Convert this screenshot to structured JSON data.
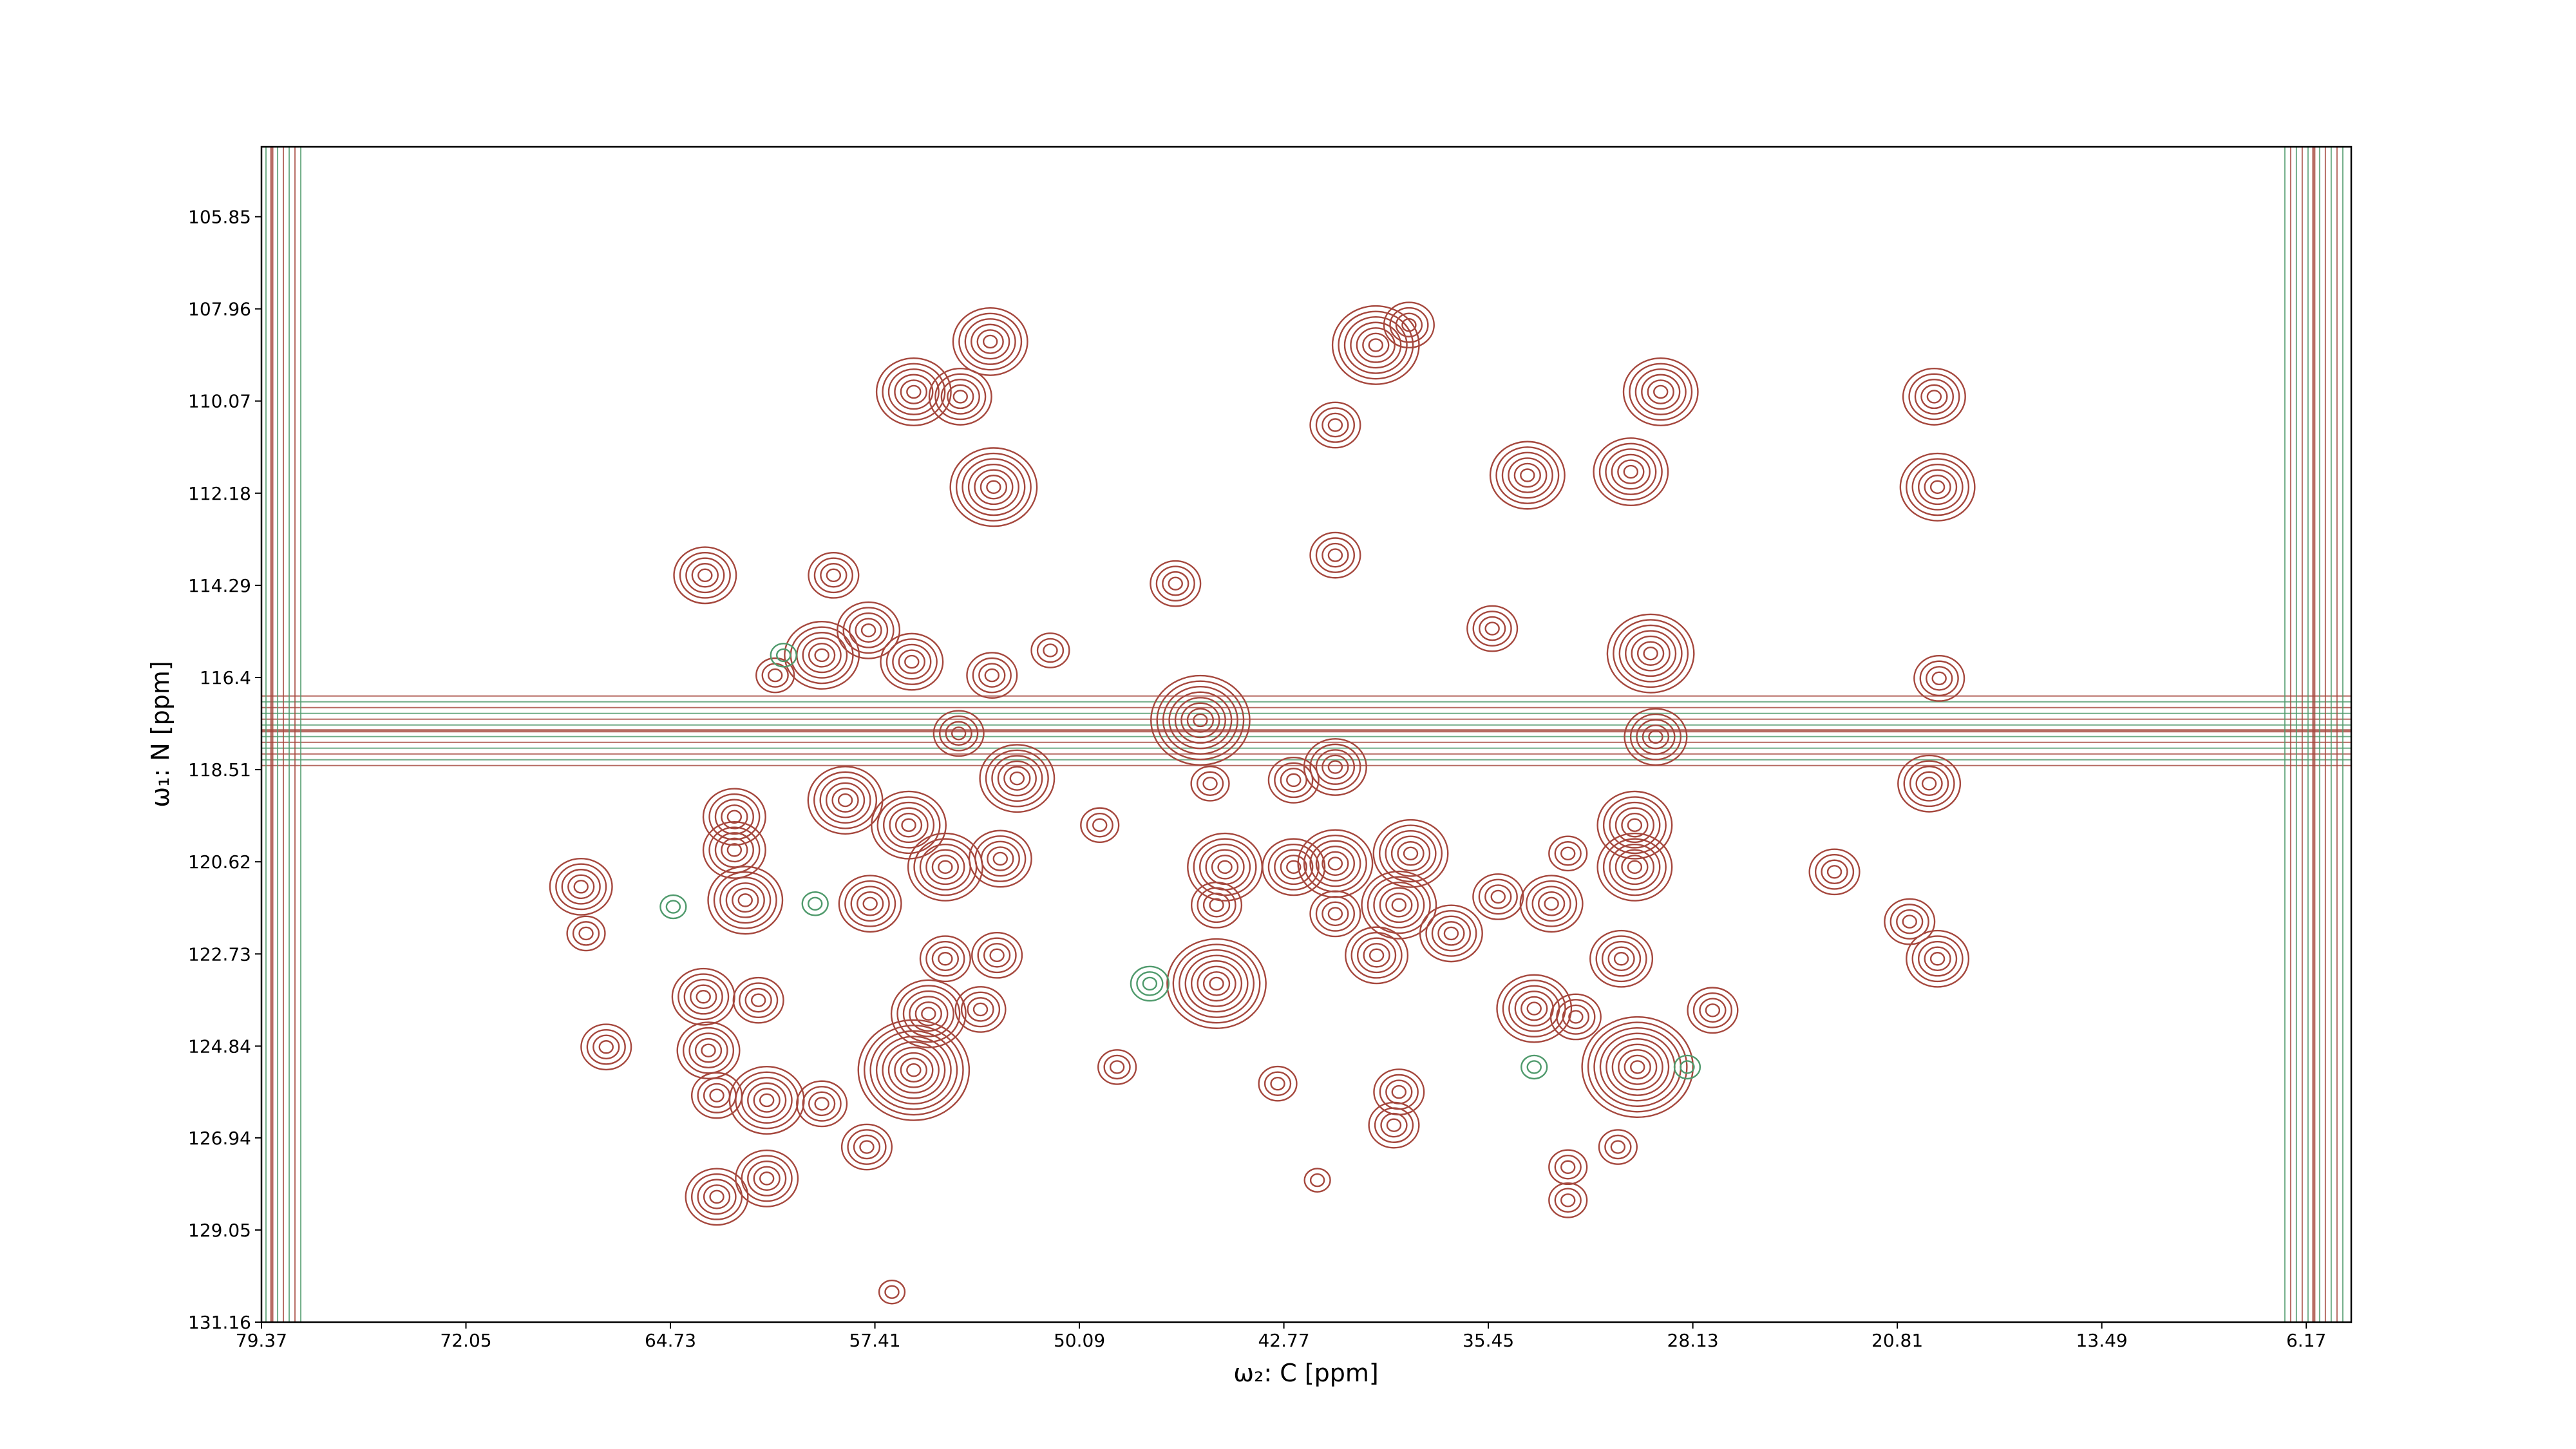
{
  "chart_data": {
    "type": "contour",
    "xlabel": "ω₂: C [ppm]",
    "ylabel": "ω₁: N [ppm]",
    "xlim": [
      79.37,
      4.56
    ],
    "ylim": [
      131.16,
      104.25
    ],
    "xticks": [
      79.37,
      72.05,
      64.73,
      57.41,
      50.09,
      42.77,
      35.45,
      28.13,
      20.81,
      13.49,
      6.17
    ],
    "yticks": [
      105.85,
      107.96,
      110.07,
      112.18,
      114.29,
      116.4,
      118.51,
      120.62,
      122.73,
      124.84,
      126.94,
      129.05,
      131.16
    ],
    "hlines": [
      117.62
    ],
    "vlines": [
      79.0,
      5.9
    ],
    "ridge_color": "#4f9a6c",
    "series": [
      {
        "color": "#a5473d",
        "x": [
          53.28,
          56.02,
          54.35,
          53.16,
          39.48,
          38.29,
          29.28,
          19.49,
          19.37,
          34.05,
          30.35,
          40.93,
          40.93,
          46.65,
          63.49,
          58.89,
          59.31,
          57.64,
          56.09,
          60.98,
          51.13,
          53.22,
          45.76,
          29.64,
          29.46,
          35.31,
          19.31,
          19.67,
          40.93,
          42.42,
          45.41,
          54.41,
          52.32,
          58.47,
          62.44,
          62.44,
          67.93,
          67.75,
          67.03,
          56.2,
          54.89,
          52.92,
          57.58,
          62.05,
          49.36,
          44.88,
          45.18,
          42.42,
          40.93,
          38.23,
          38.65,
          40.93,
          36.78,
          35.1,
          33.19,
          32.6,
          30.21,
          30.21,
          30.69,
          23.06,
          20.37,
          19.37,
          39.45,
          45.18,
          53.04,
          54.89,
          55.49,
          53.63,
          56.02,
          30.11,
          33.81,
          32.32,
          27.42,
          63.55,
          61.58,
          63.37,
          61.28,
          63.07,
          59.31,
          57.7,
          63.07,
          61.28,
          48.74,
          42.99,
          38.65,
          38.83,
          30.81,
          32.6,
          32.6,
          56.8,
          41.57
        ],
        "y": [
          108.71,
          109.86,
          109.97,
          112.04,
          108.79,
          108.33,
          109.86,
          109.97,
          112.04,
          111.77,
          111.69,
          110.62,
          113.6,
          114.25,
          114.06,
          114.06,
          115.89,
          115.32,
          116.04,
          116.35,
          115.78,
          116.35,
          117.38,
          115.85,
          117.76,
          115.28,
          116.42,
          118.83,
          118.45,
          118.75,
          118.83,
          117.68,
          118.71,
          119.21,
          119.59,
          120.35,
          121.19,
          122.26,
          124.86,
          119.78,
          120.74,
          120.55,
          121.58,
          121.5,
          119.78,
          120.74,
          121.61,
          120.74,
          120.66,
          120.43,
          121.61,
          121.81,
          122.26,
          121.42,
          121.58,
          120.43,
          119.78,
          120.74,
          122.84,
          120.85,
          121.99,
          122.84,
          122.76,
          123.41,
          122.76,
          122.84,
          124.1,
          124.0,
          125.39,
          125.32,
          123.98,
          124.17,
          124.02,
          123.71,
          123.79,
          124.94,
          126.08,
          125.97,
          126.16,
          127.15,
          128.29,
          127.87,
          125.32,
          125.7,
          125.89,
          126.65,
          127.15,
          127.61,
          128.37,
          130.47,
          127.91
        ],
        "levels": [
          6,
          6,
          5,
          7,
          7,
          4,
          6,
          5,
          6,
          6,
          6,
          4,
          4,
          4,
          5,
          4,
          6,
          5,
          5,
          3,
          3,
          4,
          8,
          7,
          5,
          4,
          4,
          5,
          5,
          4,
          3,
          4,
          6,
          6,
          5,
          5,
          5,
          3,
          4,
          6,
          6,
          5,
          5,
          6,
          3,
          6,
          4,
          5,
          6,
          6,
          6,
          4,
          5,
          4,
          5,
          3,
          6,
          6,
          5,
          4,
          4,
          5,
          5,
          8,
          4,
          4,
          6,
          4,
          9,
          9,
          6,
          4,
          4,
          5,
          4,
          5,
          6,
          4,
          4,
          4,
          5,
          5,
          3,
          3,
          4,
          4,
          3,
          3,
          3,
          2,
          2
        ]
      },
      {
        "color": "#4f9a6c",
        "x": [
          64.63,
          59.55,
          60.68,
          33.81,
          28.33,
          47.57
        ],
        "y": [
          121.65,
          121.58,
          115.89,
          125.32,
          125.32,
          123.41
        ],
        "levels": [
          2,
          2,
          2,
          2,
          2,
          3
        ]
      }
    ]
  }
}
